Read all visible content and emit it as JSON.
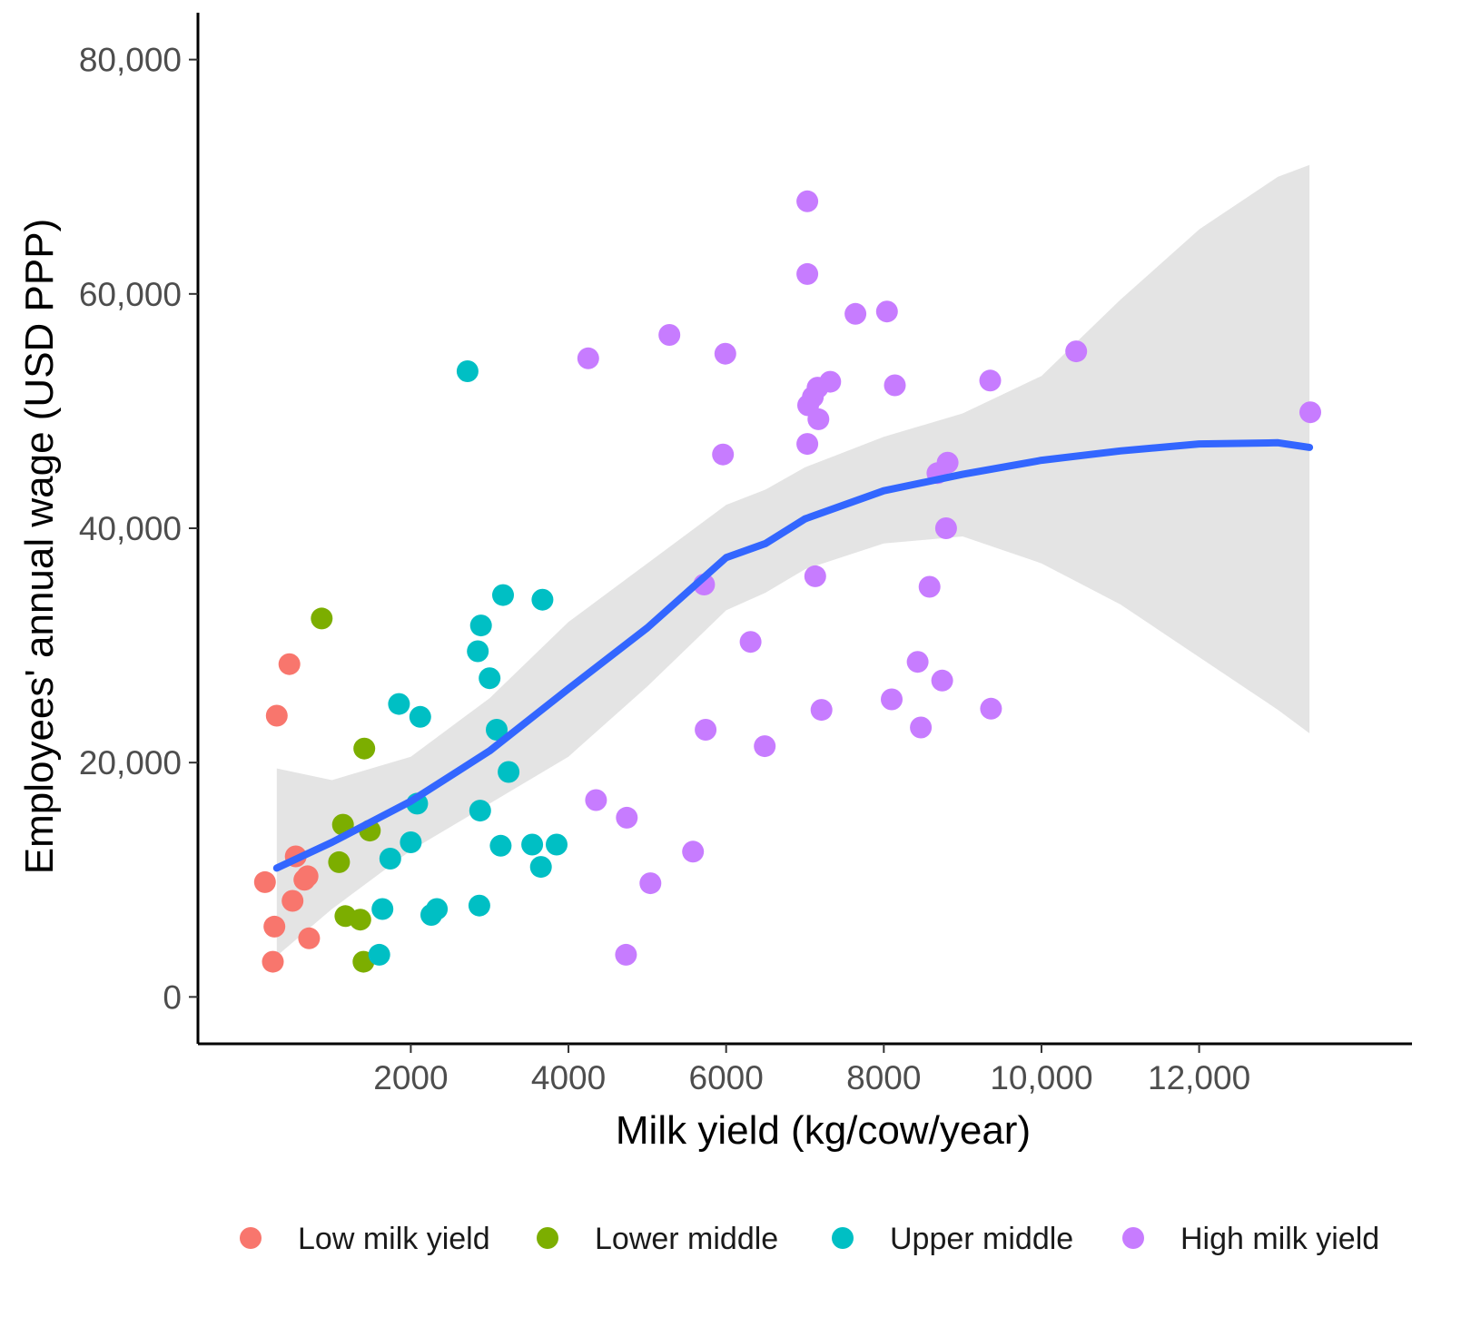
{
  "chart_data": {
    "type": "scatter",
    "title": "",
    "xlabel": "Milk yield (kg/cow/year)",
    "ylabel": "Employees' annual wage (USD PPP)",
    "xlim": [
      -700,
      14700
    ],
    "ylim": [
      -4000,
      84000
    ],
    "x_ticks": [
      {
        "value": 2000,
        "label": "2000"
      },
      {
        "value": 4000,
        "label": "4000"
      },
      {
        "value": 6000,
        "label": "6000"
      },
      {
        "value": 8000,
        "label": "8000"
      },
      {
        "value": 10000,
        "label": "10,000"
      },
      {
        "value": 12000,
        "label": "12,000"
      }
    ],
    "y_ticks": [
      {
        "value": 0,
        "label": "0"
      },
      {
        "value": 20000,
        "label": "20,000"
      },
      {
        "value": 40000,
        "label": "40,000"
      },
      {
        "value": 60000,
        "label": "60,000"
      },
      {
        "value": 80000,
        "label": "80,000"
      }
    ],
    "grid": false,
    "legend_position": "bottom",
    "series": [
      {
        "name": "Low milk yield",
        "color": "#F8766D",
        "points": [
          [
            150,
            9800
          ],
          [
            250,
            3000
          ],
          [
            270,
            6000
          ],
          [
            300,
            24000
          ],
          [
            460,
            28400
          ],
          [
            500,
            8200
          ],
          [
            540,
            12000
          ],
          [
            650,
            10000
          ],
          [
            690,
            10300
          ],
          [
            710,
            5000
          ]
        ]
      },
      {
        "name": "Lower middle",
        "color": "#7CAE00",
        "points": [
          [
            870,
            32300
          ],
          [
            1090,
            11500
          ],
          [
            1140,
            14700
          ],
          [
            1170,
            6900
          ],
          [
            1360,
            6600
          ],
          [
            1400,
            3000
          ],
          [
            1410,
            21200
          ],
          [
            1480,
            14200
          ]
        ]
      },
      {
        "name": "Upper middle",
        "color": "#00BFC4",
        "points": [
          [
            1600,
            3600
          ],
          [
            1640,
            7500
          ],
          [
            1740,
            11800
          ],
          [
            1850,
            25000
          ],
          [
            2000,
            13200
          ],
          [
            2080,
            16500
          ],
          [
            2120,
            23900
          ],
          [
            2260,
            7000
          ],
          [
            2330,
            7500
          ],
          [
            2720,
            53400
          ],
          [
            2850,
            29500
          ],
          [
            2870,
            7800
          ],
          [
            2880,
            15900
          ],
          [
            2890,
            31700
          ],
          [
            3000,
            27200
          ],
          [
            3090,
            22800
          ],
          [
            3140,
            12900
          ],
          [
            3170,
            34300
          ],
          [
            3240,
            19200
          ],
          [
            3540,
            13000
          ],
          [
            3650,
            11100
          ],
          [
            3670,
            33900
          ],
          [
            3850,
            13000
          ]
        ]
      },
      {
        "name": "High milk yield",
        "color": "#C77CFF",
        "points": [
          [
            4250,
            54500
          ],
          [
            4350,
            16800
          ],
          [
            4730,
            3600
          ],
          [
            4740,
            15300
          ],
          [
            5040,
            9700
          ],
          [
            5280,
            56500
          ],
          [
            5580,
            12400
          ],
          [
            5720,
            35200
          ],
          [
            5740,
            22800
          ],
          [
            5960,
            46300
          ],
          [
            5990,
            54900
          ],
          [
            6310,
            30300
          ],
          [
            6490,
            21400
          ],
          [
            7030,
            67900
          ],
          [
            7030,
            61700
          ],
          [
            7030,
            47200
          ],
          [
            7040,
            50500
          ],
          [
            7100,
            51200
          ],
          [
            7130,
            35900
          ],
          [
            7160,
            52000
          ],
          [
            7170,
            49300
          ],
          [
            7210,
            24500
          ],
          [
            7320,
            52500
          ],
          [
            7640,
            58300
          ],
          [
            8040,
            58500
          ],
          [
            8100,
            25400
          ],
          [
            8140,
            52200
          ],
          [
            8430,
            28600
          ],
          [
            8470,
            23000
          ],
          [
            8580,
            35000
          ],
          [
            8680,
            44700
          ],
          [
            8740,
            27000
          ],
          [
            8790,
            40000
          ],
          [
            8810,
            45600
          ],
          [
            9350,
            52600
          ],
          [
            9360,
            24600
          ],
          [
            10440,
            55100
          ],
          [
            13410,
            49900
          ]
        ]
      }
    ],
    "smooth": {
      "name": "LOESS fit",
      "color": "#3366FF",
      "band_color": "#d9d9d9",
      "x": [
        300,
        1000,
        2000,
        3000,
        4000,
        5000,
        6000,
        6500,
        7000,
        8000,
        9000,
        10000,
        11000,
        12000,
        13000,
        13400
      ],
      "y": [
        11000,
        13200,
        16700,
        21000,
        26300,
        31500,
        37500,
        38700,
        40800,
        43200,
        44600,
        45800,
        46600,
        47200,
        47300,
        46900
      ],
      "lower": [
        3500,
        7500,
        12500,
        16500,
        20500,
        26500,
        33000,
        34500,
        36500,
        38700,
        39300,
        37000,
        33500,
        29000,
        24500,
        22500
      ],
      "upper": [
        19500,
        18500,
        20500,
        25500,
        32000,
        37000,
        42000,
        43300,
        45200,
        47800,
        49800,
        53000,
        59500,
        65500,
        70000,
        71000
      ]
    }
  }
}
